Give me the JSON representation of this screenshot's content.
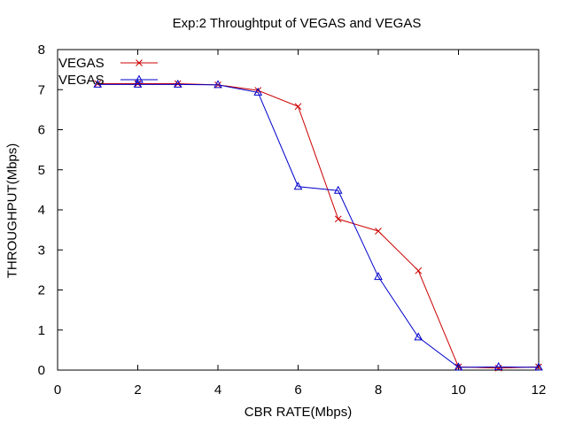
{
  "chart_data": {
    "type": "line",
    "title": "Exp:2 Throughtput of VEGAS and VEGAS",
    "xlabel": "CBR RATE(Mbps)",
    "ylabel": "THROUGHPUT(Mbps)",
    "xlim": [
      0,
      12
    ],
    "ylim": [
      0,
      8
    ],
    "xticks": [
      0,
      2,
      4,
      6,
      8,
      10,
      12
    ],
    "yticks": [
      0,
      1,
      2,
      3,
      4,
      5,
      6,
      7,
      8
    ],
    "grid": false,
    "legend_position": "top-left",
    "series": [
      {
        "name": "VEGAS",
        "color": "#cc0000",
        "marker": "x",
        "x": [
          1,
          2,
          3,
          4,
          5,
          6,
          7,
          8,
          9,
          10,
          11,
          12
        ],
        "y": [
          7.15,
          7.15,
          7.15,
          7.12,
          6.98,
          6.58,
          3.77,
          3.47,
          2.48,
          0.08,
          0.05,
          0.08
        ]
      },
      {
        "name": "VEGAS",
        "color": "#0000cc",
        "marker": "triangle",
        "x": [
          1,
          2,
          3,
          4,
          5,
          6,
          7,
          8,
          9,
          10,
          11,
          12
        ],
        "y": [
          7.13,
          7.13,
          7.13,
          7.12,
          6.93,
          4.58,
          4.48,
          2.33,
          0.82,
          0.07,
          0.08,
          0.07
        ]
      }
    ]
  }
}
